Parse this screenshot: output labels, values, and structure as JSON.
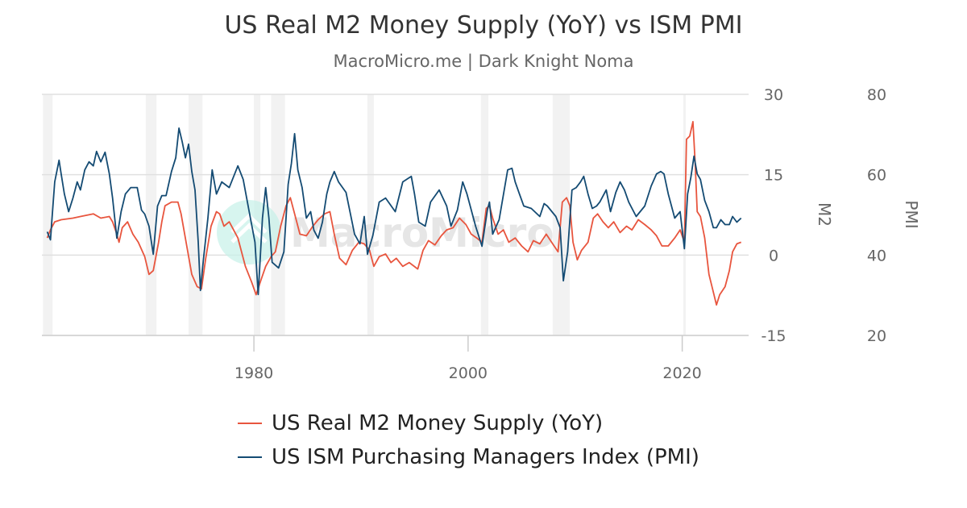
{
  "chart_data": {
    "type": "line",
    "title": "US Real M2 Money Supply (YoY) vs ISM PMI",
    "subtitle": "MacroMicro.me | Dark Knight Noma",
    "watermark": "MacroMicro",
    "x_ticks": [
      "1980",
      "2000",
      "2020"
    ],
    "xlim": [
      1960.2,
      2026.2
    ],
    "y_left": {
      "label": "M2",
      "ticks": [
        "30",
        "15",
        "0",
        "-15"
      ],
      "lim": [
        -15,
        30
      ]
    },
    "y_right": {
      "label": "PMI",
      "ticks": [
        "80",
        "60",
        "40",
        "20"
      ],
      "lim": [
        20,
        80
      ]
    },
    "grid": true,
    "legend_placement": "bottom",
    "recessions": [
      [
        1960.3,
        1961.2
      ],
      [
        1969.9,
        1970.9
      ],
      [
        1973.9,
        1975.2
      ],
      [
        1980.0,
        1980.6
      ],
      [
        1981.6,
        1982.9
      ],
      [
        1990.6,
        1991.2
      ],
      [
        2001.2,
        2001.9
      ],
      [
        2007.9,
        2009.5
      ],
      [
        2020.1,
        2020.3
      ]
    ],
    "series": [
      {
        "name": "US Real M2 Money Supply (YoY)",
        "axis": "left",
        "color": "#e8553e",
        "points": [
          [
            1960.7,
            3.2
          ],
          [
            1961.0,
            4.7
          ],
          [
            1961.4,
            6.2
          ],
          [
            1962.0,
            6.6
          ],
          [
            1963.1,
            6.9
          ],
          [
            1963.8,
            7.2
          ],
          [
            1965.0,
            7.7
          ],
          [
            1965.7,
            6.9
          ],
          [
            1966.5,
            7.2
          ],
          [
            1966.8,
            6.2
          ],
          [
            1967.2,
            3.9
          ],
          [
            1967.4,
            2.4
          ],
          [
            1967.7,
            5.1
          ],
          [
            1968.2,
            6.2
          ],
          [
            1968.7,
            3.9
          ],
          [
            1969.2,
            2.4
          ],
          [
            1969.8,
            -0.3
          ],
          [
            1970.2,
            -3.6
          ],
          [
            1970.6,
            -2.9
          ],
          [
            1971.1,
            2.4
          ],
          [
            1971.4,
            6.2
          ],
          [
            1971.7,
            9.2
          ],
          [
            1972.3,
            9.9
          ],
          [
            1972.9,
            9.9
          ],
          [
            1973.2,
            7.7
          ],
          [
            1973.8,
            0.9
          ],
          [
            1974.2,
            -3.6
          ],
          [
            1974.7,
            -5.9
          ],
          [
            1975.1,
            -6.3
          ],
          [
            1975.5,
            -0.6
          ],
          [
            1976.0,
            5.4
          ],
          [
            1976.5,
            8.1
          ],
          [
            1976.8,
            7.7
          ],
          [
            1977.2,
            5.4
          ],
          [
            1977.7,
            6.2
          ],
          [
            1978.5,
            3.2
          ],
          [
            1979.2,
            -2.1
          ],
          [
            1979.8,
            -5.1
          ],
          [
            1980.2,
            -7.4
          ],
          [
            1980.7,
            -4.4
          ],
          [
            1981.1,
            -2.1
          ],
          [
            1981.6,
            -0.3
          ],
          [
            1982.0,
            0.6
          ],
          [
            1982.5,
            5.4
          ],
          [
            1983.0,
            9.2
          ],
          [
            1983.4,
            10.7
          ],
          [
            1983.8,
            7.7
          ],
          [
            1984.3,
            3.9
          ],
          [
            1984.9,
            3.6
          ],
          [
            1985.5,
            5.4
          ],
          [
            1986.0,
            6.6
          ],
          [
            1986.6,
            7.7
          ],
          [
            1987.1,
            8.1
          ],
          [
            1987.5,
            3.9
          ],
          [
            1988.0,
            -0.6
          ],
          [
            1988.6,
            -1.8
          ],
          [
            1989.2,
            0.9
          ],
          [
            1989.8,
            2.4
          ],
          [
            1990.3,
            2.1
          ],
          [
            1990.8,
            0.9
          ],
          [
            1991.2,
            -2.1
          ],
          [
            1991.7,
            -0.3
          ],
          [
            1992.3,
            0.2
          ],
          [
            1992.8,
            -1.4
          ],
          [
            1993.3,
            -0.6
          ],
          [
            1993.9,
            -2.1
          ],
          [
            1994.5,
            -1.4
          ],
          [
            1995.3,
            -2.6
          ],
          [
            1995.8,
            0.9
          ],
          [
            1996.3,
            2.7
          ],
          [
            1996.9,
            1.9
          ],
          [
            1997.5,
            3.6
          ],
          [
            1998.0,
            4.7
          ],
          [
            1998.6,
            5.1
          ],
          [
            1999.2,
            6.9
          ],
          [
            1999.8,
            5.7
          ],
          [
            2000.3,
            3.9
          ],
          [
            2000.8,
            3.2
          ],
          [
            2001.3,
            2.4
          ],
          [
            2001.7,
            8.7
          ],
          [
            2002.0,
            9.2
          ],
          [
            2002.3,
            6.9
          ],
          [
            2002.8,
            3.9
          ],
          [
            2003.3,
            4.7
          ],
          [
            2003.8,
            2.4
          ],
          [
            2004.4,
            3.2
          ],
          [
            2005.0,
            1.7
          ],
          [
            2005.6,
            0.6
          ],
          [
            2006.1,
            2.7
          ],
          [
            2006.7,
            2.1
          ],
          [
            2007.3,
            3.9
          ],
          [
            2007.8,
            2.4
          ],
          [
            2008.4,
            0.6
          ],
          [
            2008.8,
            9.9
          ],
          [
            2009.2,
            10.7
          ],
          [
            2009.5,
            9.2
          ],
          [
            2009.8,
            2.4
          ],
          [
            2010.2,
            -0.9
          ],
          [
            2010.6,
            0.9
          ],
          [
            2011.2,
            2.4
          ],
          [
            2011.7,
            6.9
          ],
          [
            2012.1,
            7.7
          ],
          [
            2012.6,
            6.2
          ],
          [
            2013.1,
            5.1
          ],
          [
            2013.6,
            6.2
          ],
          [
            2014.2,
            4.2
          ],
          [
            2014.8,
            5.4
          ],
          [
            2015.3,
            4.7
          ],
          [
            2015.9,
            6.6
          ],
          [
            2016.5,
            5.7
          ],
          [
            2017.1,
            4.7
          ],
          [
            2017.6,
            3.6
          ],
          [
            2018.1,
            1.7
          ],
          [
            2018.7,
            1.7
          ],
          [
            2019.3,
            3.2
          ],
          [
            2019.8,
            4.7
          ],
          [
            2020.2,
            2.4
          ],
          [
            2020.4,
            21.6
          ],
          [
            2020.7,
            22.2
          ],
          [
            2021.0,
            24.9
          ],
          [
            2021.2,
            17.4
          ],
          [
            2021.4,
            8.1
          ],
          [
            2021.7,
            7.2
          ],
          [
            2022.1,
            3.2
          ],
          [
            2022.5,
            -3.6
          ],
          [
            2022.9,
            -6.9
          ],
          [
            2023.2,
            -9.3
          ],
          [
            2023.5,
            -7.4
          ],
          [
            2024.0,
            -5.9
          ],
          [
            2024.4,
            -2.9
          ],
          [
            2024.7,
            0.6
          ],
          [
            2025.1,
            2.1
          ],
          [
            2025.5,
            2.4
          ]
        ]
      },
      {
        "name": "US ISM Purchasing Managers Index (PMI)",
        "axis": "right",
        "color": "#144b73",
        "points": [
          [
            1960.7,
            45.8
          ],
          [
            1961.0,
            43.8
          ],
          [
            1961.4,
            58.2
          ],
          [
            1961.8,
            63.6
          ],
          [
            1962.0,
            60.2
          ],
          [
            1962.3,
            55.2
          ],
          [
            1962.7,
            50.8
          ],
          [
            1963.1,
            54.2
          ],
          [
            1963.5,
            58.2
          ],
          [
            1963.8,
            56.2
          ],
          [
            1964.2,
            61.2
          ],
          [
            1964.6,
            63.2
          ],
          [
            1965.0,
            62.2
          ],
          [
            1965.3,
            65.8
          ],
          [
            1965.7,
            63.2
          ],
          [
            1966.1,
            65.6
          ],
          [
            1966.5,
            60.2
          ],
          [
            1966.8,
            54.2
          ],
          [
            1967.2,
            44.2
          ],
          [
            1967.6,
            50.8
          ],
          [
            1968.0,
            55.2
          ],
          [
            1968.5,
            56.8
          ],
          [
            1969.1,
            56.8
          ],
          [
            1969.5,
            51.2
          ],
          [
            1969.8,
            50.2
          ],
          [
            1970.2,
            47.2
          ],
          [
            1970.6,
            40.2
          ],
          [
            1971.0,
            52.2
          ],
          [
            1971.4,
            54.8
          ],
          [
            1971.8,
            54.8
          ],
          [
            1972.3,
            60.8
          ],
          [
            1972.7,
            64.2
          ],
          [
            1973.0,
            71.6
          ],
          [
            1973.3,
            68.2
          ],
          [
            1973.6,
            64.2
          ],
          [
            1973.9,
            67.6
          ],
          [
            1974.2,
            60.8
          ],
          [
            1974.5,
            56.2
          ],
          [
            1974.8,
            43.2
          ],
          [
            1975.0,
            31.2
          ],
          [
            1975.3,
            39.2
          ],
          [
            1975.7,
            49.2
          ],
          [
            1976.1,
            61.2
          ],
          [
            1976.5,
            55.2
          ],
          [
            1977.0,
            58.2
          ],
          [
            1977.7,
            56.8
          ],
          [
            1978.5,
            62.2
          ],
          [
            1979.0,
            58.8
          ],
          [
            1979.6,
            50.2
          ],
          [
            1980.1,
            43.2
          ],
          [
            1980.4,
            30.2
          ],
          [
            1980.8,
            49.2
          ],
          [
            1981.1,
            56.8
          ],
          [
            1981.4,
            49.2
          ],
          [
            1981.7,
            38.2
          ],
          [
            1982.3,
            36.8
          ],
          [
            1982.8,
            40.8
          ],
          [
            1983.2,
            57.6
          ],
          [
            1983.5,
            62.8
          ],
          [
            1983.8,
            70.2
          ],
          [
            1984.1,
            61.2
          ],
          [
            1984.5,
            56.8
          ],
          [
            1984.9,
            49.2
          ],
          [
            1985.3,
            50.8
          ],
          [
            1985.6,
            46.2
          ],
          [
            1986.0,
            44.2
          ],
          [
            1986.4,
            48.2
          ],
          [
            1986.8,
            55.2
          ],
          [
            1987.1,
            58.2
          ],
          [
            1987.5,
            60.8
          ],
          [
            1987.9,
            58.2
          ],
          [
            1988.6,
            55.6
          ],
          [
            1989.4,
            45.2
          ],
          [
            1989.9,
            42.8
          ],
          [
            1990.3,
            49.6
          ],
          [
            1990.6,
            40.2
          ],
          [
            1991.1,
            44.8
          ],
          [
            1991.7,
            53.2
          ],
          [
            1992.3,
            54.2
          ],
          [
            1993.2,
            50.8
          ],
          [
            1993.9,
            58.2
          ],
          [
            1994.7,
            59.6
          ],
          [
            1995.0,
            55.2
          ],
          [
            1995.4,
            48.2
          ],
          [
            1996.0,
            47.2
          ],
          [
            1996.5,
            53.2
          ],
          [
            1997.3,
            56.2
          ],
          [
            1998.0,
            52.2
          ],
          [
            1998.4,
            47.2
          ],
          [
            1999.0,
            51.2
          ],
          [
            1999.5,
            58.2
          ],
          [
            1999.9,
            55.2
          ],
          [
            2000.7,
            47.2
          ],
          [
            2001.3,
            42.2
          ],
          [
            2001.8,
            51.2
          ],
          [
            2002.0,
            53.2
          ],
          [
            2002.3,
            45.2
          ],
          [
            2002.9,
            48.8
          ],
          [
            2003.7,
            61.2
          ],
          [
            2004.1,
            61.6
          ],
          [
            2004.4,
            58.2
          ],
          [
            2004.8,
            55.2
          ],
          [
            2005.2,
            52.2
          ],
          [
            2005.9,
            51.6
          ],
          [
            2006.7,
            49.6
          ],
          [
            2007.1,
            52.8
          ],
          [
            2007.4,
            52.2
          ],
          [
            2008.2,
            49.6
          ],
          [
            2008.6,
            46.8
          ],
          [
            2008.9,
            33.6
          ],
          [
            2009.3,
            40.8
          ],
          [
            2009.7,
            56.2
          ],
          [
            2010.1,
            56.8
          ],
          [
            2010.5,
            58.2
          ],
          [
            2010.8,
            59.6
          ],
          [
            2011.2,
            55.2
          ],
          [
            2011.6,
            51.6
          ],
          [
            2012.0,
            52.2
          ],
          [
            2012.3,
            53.2
          ],
          [
            2012.9,
            56.2
          ],
          [
            2013.3,
            50.8
          ],
          [
            2013.8,
            55.6
          ],
          [
            2014.2,
            58.2
          ],
          [
            2014.6,
            56.2
          ],
          [
            2015.0,
            53.2
          ],
          [
            2015.7,
            49.6
          ],
          [
            2016.5,
            52.2
          ],
          [
            2017.1,
            57.2
          ],
          [
            2017.6,
            60.2
          ],
          [
            2018.0,
            60.8
          ],
          [
            2018.3,
            60.2
          ],
          [
            2018.7,
            55.2
          ],
          [
            2019.3,
            49.2
          ],
          [
            2019.8,
            50.8
          ],
          [
            2020.2,
            41.6
          ],
          [
            2020.5,
            55.2
          ],
          [
            2020.8,
            59.2
          ],
          [
            2021.1,
            64.6
          ],
          [
            2021.4,
            60.2
          ],
          [
            2021.7,
            58.8
          ],
          [
            2022.1,
            53.6
          ],
          [
            2022.5,
            50.8
          ],
          [
            2022.9,
            46.8
          ],
          [
            2023.2,
            46.8
          ],
          [
            2023.6,
            48.8
          ],
          [
            2024.0,
            47.6
          ],
          [
            2024.4,
            47.6
          ],
          [
            2024.7,
            49.6
          ],
          [
            2025.1,
            48.2
          ],
          [
            2025.5,
            49.2
          ]
        ]
      }
    ]
  }
}
